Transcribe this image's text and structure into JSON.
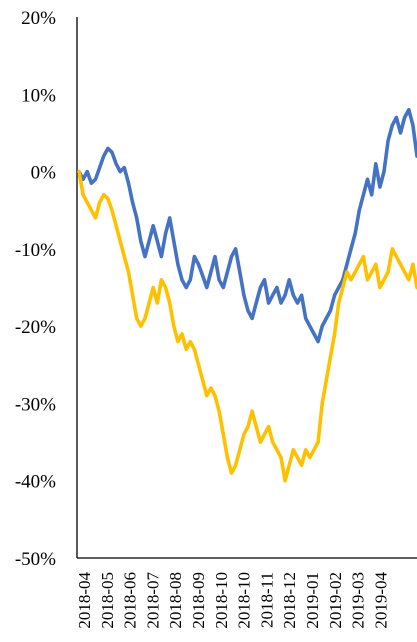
{
  "chart_data": {
    "type": "line",
    "title": "",
    "xlabel": "",
    "ylabel": "",
    "ylim": [
      -50,
      20
    ],
    "y_tick_labels": [
      "20%",
      "10%",
      "0%",
      "-10%",
      "-20%",
      "-30%",
      "-40%",
      "-50%"
    ],
    "y_tick_values": [
      20,
      10,
      0,
      -10,
      -20,
      -30,
      -40,
      -50
    ],
    "x_tick_labels": [
      "2018-04",
      "2018-05",
      "2018-06",
      "2018-07",
      "2018-08",
      "2018-09",
      "2018-10",
      "2018-10",
      "2018-11",
      "2018-12",
      "2019-01",
      "2019-02",
      "2019-03",
      "2019-04"
    ],
    "grid": false,
    "legend": "none",
    "series": [
      {
        "color": "#4472C4",
        "values": [
          0,
          -1,
          0,
          -1.5,
          -1,
          0.5,
          2,
          3,
          2.5,
          1,
          0,
          0.5,
          -1.5,
          -4,
          -6,
          -9,
          -11,
          -9,
          -7,
          -9,
          -11,
          -8,
          -6,
          -9,
          -12,
          -14,
          -15,
          -14,
          -11,
          -12,
          -13.5,
          -15,
          -13,
          -11,
          -14,
          -15,
          -13,
          -11,
          -10,
          -13,
          -16,
          -18,
          -19,
          -17,
          -15,
          -14,
          -17,
          -16,
          -15,
          -17,
          -16,
          -14,
          -16,
          -17,
          -16,
          -19,
          -20,
          -21,
          -22,
          -20,
          -19,
          -18,
          -16,
          -15,
          -14,
          -12,
          -10,
          -8,
          -5,
          -3,
          -1,
          -3,
          1,
          -2,
          0,
          4,
          6,
          7,
          5,
          7,
          8,
          6,
          2
        ]
      },
      {
        "color": "#FFC000",
        "values": [
          0,
          -3,
          -4,
          -5,
          -6,
          -4,
          -3,
          -3.5,
          -5,
          -7,
          -9,
          -11,
          -13,
          -16,
          -19,
          -20,
          -19,
          -17,
          -15,
          -17,
          -14,
          -15,
          -17,
          -20,
          -22,
          -21,
          -23,
          -22,
          -23,
          -25,
          -27,
          -29,
          -28,
          -29,
          -31,
          -34,
          -37,
          -39,
          -38,
          -36,
          -34,
          -33,
          -31,
          -33,
          -35,
          -34,
          -33,
          -35,
          -36,
          -37,
          -40,
          -38,
          -36,
          -37,
          -38,
          -36,
          -37,
          -36,
          -35,
          -30,
          -27,
          -24,
          -21,
          -17,
          -15,
          -13,
          -14,
          -13,
          -12,
          -11,
          -14,
          -13,
          -12,
          -15,
          -14,
          -13,
          -10,
          -11,
          -12,
          -13,
          -14,
          -12,
          -15
        ]
      }
    ]
  }
}
